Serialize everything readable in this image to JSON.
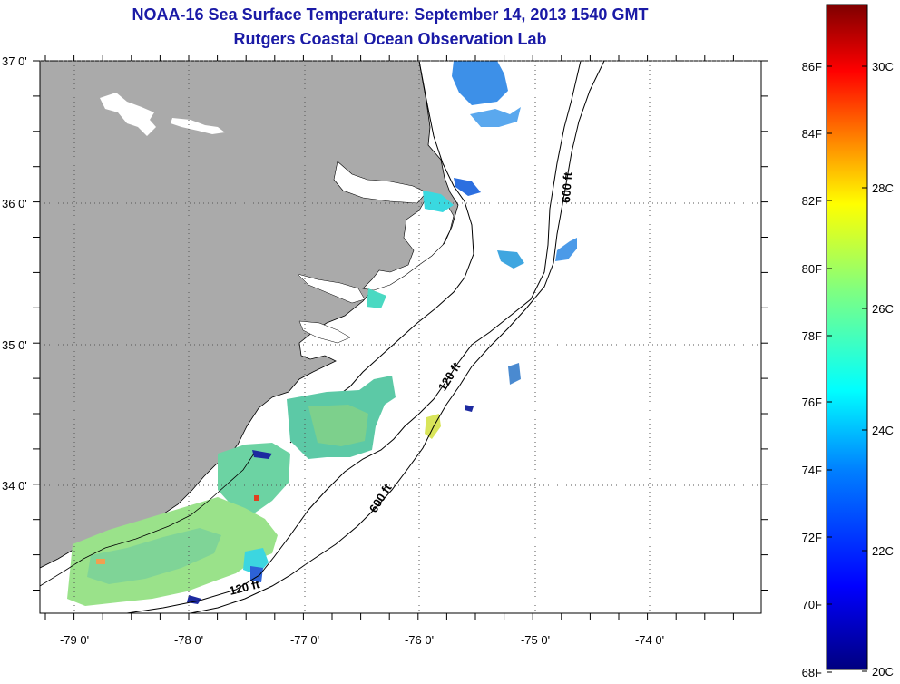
{
  "header": {
    "title": "NOAA-16 Sea Surface Temperature:  September 14, 2013 1540 GMT",
    "subtitle": "Rutgers Coastal Ocean Observation Lab"
  },
  "map": {
    "lon_labels": [
      "-79 0'",
      "-78 0'",
      "-77 0'",
      "-76 0'",
      "-75 0'",
      "-74 0'"
    ],
    "lat_labels": [
      "37 0'",
      "36 0'",
      "35 0'",
      "34 0'"
    ],
    "contour_labels": [
      {
        "id": "c600n",
        "text": "600 ft"
      },
      {
        "id": "c120n",
        "text": "120 ft"
      },
      {
        "id": "c600s",
        "text": "600 ft"
      },
      {
        "id": "c120s",
        "text": "120 ft"
      }
    ],
    "colors": {
      "land": "#aaaaaa",
      "ocean": "#ffffff",
      "gridline": "#555555"
    }
  },
  "colorbar": {
    "fahrenheit_labels": [
      "86F",
      "84F",
      "82F",
      "80F",
      "78F",
      "76F",
      "74F",
      "72F",
      "70F",
      "68F"
    ],
    "celsius_labels": [
      "30C",
      "28C",
      "26C",
      "24C",
      "22C",
      "20C"
    ],
    "scale_colors": [
      "#7f0000",
      "#ff0000",
      "#ff8000",
      "#ffff00",
      "#80ff80",
      "#00ffff",
      "#0080ff",
      "#0000ff",
      "#00007f"
    ]
  }
}
